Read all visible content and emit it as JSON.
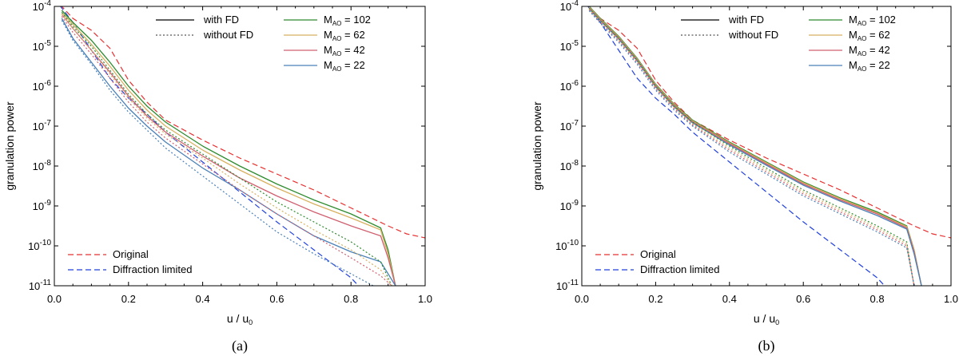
{
  "chart_data": [
    {
      "type": "line",
      "panel_label": "(a)",
      "xlabel": "u / u",
      "xlabel_sub": "0",
      "ylabel": "granulation power",
      "xlim": [
        0,
        1
      ],
      "ylim_log10": [
        -11,
        -4
      ],
      "xticks": [
        "0.0",
        "0.2",
        "0.4",
        "0.6",
        "0.8",
        "1.0"
      ],
      "yticks": [
        {
          "base": "10",
          "exp": "-4"
        },
        {
          "base": "10",
          "exp": "-5"
        },
        {
          "base": "10",
          "exp": "-6"
        },
        {
          "base": "10",
          "exp": "-7"
        },
        {
          "base": "10",
          "exp": "-8"
        },
        {
          "base": "10",
          "exp": "-9"
        },
        {
          "base": "10",
          "exp": "-10"
        },
        {
          "base": "10",
          "exp": "-11"
        }
      ],
      "legend_style": [
        {
          "label": "with FD",
          "dash": "solid",
          "color": "#000000"
        },
        {
          "label": "without FD",
          "dash": "dotted",
          "color": "#555555"
        }
      ],
      "legend_mao": [
        {
          "name": "M",
          "sub": "AO",
          "value": "= 102",
          "color": "#2e8b2e"
        },
        {
          "name": "M",
          "sub": "AO",
          "value": "= 62",
          "color": "#d8b060"
        },
        {
          "name": "M",
          "sub": "AO",
          "value": "= 42",
          "color": "#d06070"
        },
        {
          "name": "M",
          "sub": "AO",
          "value": "= 22",
          "color": "#4a80b8"
        }
      ],
      "legend_ref": [
        {
          "label": "Original",
          "color": "#e83030"
        },
        {
          "label": "Diffraction limited",
          "color": "#2040e0"
        }
      ],
      "series": [
        {
          "name": "Original",
          "style": "dashed",
          "color": "#e83030",
          "x": [
            0,
            0.05,
            0.1,
            0.15,
            0.2,
            0.25,
            0.3,
            0.4,
            0.5,
            0.6,
            0.7,
            0.8,
            0.9,
            0.95,
            1.0
          ],
          "log10y": [
            -3.8,
            -4.3,
            -4.6,
            -5.05,
            -5.85,
            -6.4,
            -6.85,
            -7.35,
            -7.8,
            -8.2,
            -8.6,
            -9.05,
            -9.5,
            -9.7,
            -9.8
          ]
        },
        {
          "name": "Diffraction limited",
          "style": "dashed",
          "color": "#2040e0",
          "x": [
            0,
            0.05,
            0.1,
            0.15,
            0.2,
            0.25,
            0.3,
            0.4,
            0.5,
            0.6,
            0.7,
            0.8,
            0.82
          ],
          "log10y": [
            -3.8,
            -4.4,
            -5.1,
            -5.8,
            -6.3,
            -6.7,
            -7.15,
            -7.9,
            -8.65,
            -9.4,
            -10.1,
            -10.8,
            -11.0
          ]
        },
        {
          "name": "M_AO = 102 with FD",
          "style": "solid",
          "color": "#2e8b2e",
          "x": [
            0.02,
            0.05,
            0.1,
            0.15,
            0.2,
            0.25,
            0.3,
            0.4,
            0.5,
            0.6,
            0.7,
            0.8,
            0.88,
            0.9,
            0.92
          ],
          "log10y": [
            -4.1,
            -4.4,
            -4.85,
            -5.4,
            -6.0,
            -6.5,
            -6.9,
            -7.5,
            -8.0,
            -8.45,
            -8.85,
            -9.2,
            -9.55,
            -10.1,
            -11.0
          ]
        },
        {
          "name": "M_AO = 62 with FD",
          "style": "solid",
          "color": "#d8b060",
          "x": [
            0.02,
            0.05,
            0.1,
            0.15,
            0.2,
            0.25,
            0.3,
            0.4,
            0.5,
            0.6,
            0.7,
            0.8,
            0.88,
            0.9,
            0.92
          ],
          "log10y": [
            -4.15,
            -4.45,
            -4.95,
            -5.5,
            -6.1,
            -6.6,
            -7.0,
            -7.6,
            -8.1,
            -8.55,
            -8.95,
            -9.3,
            -9.6,
            -10.2,
            -11.0
          ]
        },
        {
          "name": "M_AO = 42 with FD",
          "style": "solid",
          "color": "#d06070",
          "x": [
            0.02,
            0.05,
            0.1,
            0.15,
            0.2,
            0.25,
            0.3,
            0.4,
            0.5,
            0.6,
            0.7,
            0.8,
            0.88,
            0.9,
            0.92
          ],
          "log10y": [
            -4.2,
            -4.55,
            -5.1,
            -5.65,
            -6.25,
            -6.75,
            -7.15,
            -7.75,
            -8.3,
            -8.75,
            -9.15,
            -9.5,
            -9.75,
            -10.3,
            -11.0
          ]
        },
        {
          "name": "M_AO = 22 with FD",
          "style": "solid",
          "color": "#4a80b8",
          "x": [
            0.02,
            0.05,
            0.1,
            0.15,
            0.2,
            0.25,
            0.3,
            0.4,
            0.5,
            0.6,
            0.7,
            0.8,
            0.88,
            0.9,
            0.92
          ],
          "log10y": [
            -4.3,
            -4.8,
            -5.4,
            -6.0,
            -6.55,
            -7.0,
            -7.4,
            -8.05,
            -8.6,
            -9.2,
            -9.75,
            -10.15,
            -10.4,
            -10.7,
            -11.0
          ]
        },
        {
          "name": "M_AO = 102 without FD",
          "style": "dotted",
          "color": "#2e8b2e",
          "x": [
            0.02,
            0.05,
            0.1,
            0.15,
            0.2,
            0.25,
            0.3,
            0.4,
            0.5,
            0.6,
            0.7,
            0.8,
            0.88,
            0.91
          ],
          "log10y": [
            -4.15,
            -4.5,
            -5.0,
            -5.6,
            -6.2,
            -6.7,
            -7.1,
            -7.7,
            -8.3,
            -8.9,
            -9.4,
            -9.9,
            -10.4,
            -11.0
          ]
        },
        {
          "name": "M_AO = 62 without FD",
          "style": "dotted",
          "color": "#d8b060",
          "x": [
            0.02,
            0.05,
            0.1,
            0.15,
            0.2,
            0.25,
            0.3,
            0.4,
            0.5,
            0.6,
            0.7,
            0.8,
            0.88,
            0.91
          ],
          "log10y": [
            -4.2,
            -4.55,
            -5.1,
            -5.7,
            -6.3,
            -6.8,
            -7.2,
            -7.8,
            -8.45,
            -9.05,
            -9.6,
            -10.1,
            -10.6,
            -11.0
          ]
        },
        {
          "name": "M_AO = 42 without FD",
          "style": "dotted",
          "color": "#d06070",
          "x": [
            0.02,
            0.05,
            0.1,
            0.15,
            0.2,
            0.25,
            0.3,
            0.4,
            0.5,
            0.6,
            0.7,
            0.8,
            0.88,
            0.91
          ],
          "log10y": [
            -4.25,
            -4.65,
            -5.2,
            -5.8,
            -6.4,
            -6.9,
            -7.3,
            -7.95,
            -8.6,
            -9.2,
            -9.75,
            -10.3,
            -10.75,
            -11.0
          ]
        },
        {
          "name": "M_AO = 22 without FD",
          "style": "dotted",
          "color": "#4a80b8",
          "x": [
            0.02,
            0.05,
            0.1,
            0.15,
            0.2,
            0.25,
            0.3,
            0.4,
            0.5,
            0.6,
            0.7,
            0.8,
            0.86
          ],
          "log10y": [
            -4.35,
            -4.85,
            -5.45,
            -6.1,
            -6.65,
            -7.1,
            -7.55,
            -8.25,
            -8.95,
            -9.65,
            -10.2,
            -10.7,
            -11.0
          ]
        }
      ]
    },
    {
      "type": "line",
      "panel_label": "(b)",
      "xlabel": "u / u",
      "xlabel_sub": "0",
      "ylabel": "granulation power",
      "xlim": [
        0,
        1
      ],
      "ylim_log10": [
        -11,
        -4
      ],
      "xticks": [
        "0.0",
        "0.2",
        "0.4",
        "0.6",
        "0.8",
        "1.0"
      ],
      "yticks": [
        {
          "base": "10",
          "exp": "-4"
        },
        {
          "base": "10",
          "exp": "-5"
        },
        {
          "base": "10",
          "exp": "-6"
        },
        {
          "base": "10",
          "exp": "-7"
        },
        {
          "base": "10",
          "exp": "-8"
        },
        {
          "base": "10",
          "exp": "-9"
        },
        {
          "base": "10",
          "exp": "-10"
        },
        {
          "base": "10",
          "exp": "-11"
        }
      ],
      "legend_style": [
        {
          "label": "with FD",
          "dash": "solid",
          "color": "#000000"
        },
        {
          "label": "without FD",
          "dash": "dotted",
          "color": "#555555"
        }
      ],
      "legend_mao": [
        {
          "name": "M",
          "sub": "AO",
          "value": "= 102",
          "color": "#2e8b2e"
        },
        {
          "name": "M",
          "sub": "AO",
          "value": "= 62",
          "color": "#d8b060"
        },
        {
          "name": "M",
          "sub": "AO",
          "value": "= 42",
          "color": "#d06070"
        },
        {
          "name": "M",
          "sub": "AO",
          "value": "= 22",
          "color": "#4a80b8"
        }
      ],
      "legend_ref": [
        {
          "label": "Original",
          "color": "#e83030"
        },
        {
          "label": "Diffraction limited",
          "color": "#2040e0"
        }
      ],
      "series": [
        {
          "name": "Original",
          "style": "dashed",
          "color": "#e83030",
          "x": [
            0,
            0.05,
            0.1,
            0.15,
            0.2,
            0.25,
            0.3,
            0.4,
            0.5,
            0.6,
            0.7,
            0.8,
            0.9,
            0.95,
            1.0
          ],
          "log10y": [
            -3.8,
            -4.3,
            -4.6,
            -5.05,
            -5.85,
            -6.4,
            -6.85,
            -7.35,
            -7.8,
            -8.2,
            -8.6,
            -9.05,
            -9.5,
            -9.7,
            -9.8
          ]
        },
        {
          "name": "Diffraction limited",
          "style": "dashed",
          "color": "#2040e0",
          "x": [
            0,
            0.05,
            0.1,
            0.15,
            0.2,
            0.25,
            0.3,
            0.4,
            0.5,
            0.6,
            0.7,
            0.8,
            0.82
          ],
          "log10y": [
            -3.8,
            -4.4,
            -5.1,
            -5.8,
            -6.3,
            -6.7,
            -7.15,
            -7.9,
            -8.65,
            -9.4,
            -10.1,
            -10.8,
            -11.0
          ]
        },
        {
          "name": "M_AO = 102 with FD",
          "style": "solid",
          "color": "#2e8b2e",
          "x": [
            0.02,
            0.05,
            0.1,
            0.15,
            0.2,
            0.25,
            0.3,
            0.4,
            0.5,
            0.6,
            0.7,
            0.8,
            0.88,
            0.9,
            0.92
          ],
          "log10y": [
            -4.0,
            -4.3,
            -4.75,
            -5.3,
            -5.95,
            -6.45,
            -6.85,
            -7.4,
            -7.9,
            -8.4,
            -8.8,
            -9.15,
            -9.5,
            -10.1,
            -11.0
          ]
        },
        {
          "name": "M_AO = 62 with FD",
          "style": "solid",
          "color": "#d8b060",
          "x": [
            0.02,
            0.05,
            0.1,
            0.15,
            0.2,
            0.25,
            0.3,
            0.4,
            0.5,
            0.6,
            0.7,
            0.8,
            0.88,
            0.9,
            0.92
          ],
          "log10y": [
            -4.02,
            -4.32,
            -4.77,
            -5.32,
            -5.97,
            -6.47,
            -6.87,
            -7.42,
            -7.92,
            -8.42,
            -8.82,
            -9.18,
            -9.52,
            -10.1,
            -11.0
          ]
        },
        {
          "name": "M_AO = 42 with FD",
          "style": "solid",
          "color": "#d06070",
          "x": [
            0.02,
            0.05,
            0.1,
            0.15,
            0.2,
            0.25,
            0.3,
            0.4,
            0.5,
            0.6,
            0.7,
            0.8,
            0.88,
            0.9,
            0.92
          ],
          "log10y": [
            -4.04,
            -4.34,
            -4.79,
            -5.34,
            -5.99,
            -6.49,
            -6.89,
            -7.44,
            -7.95,
            -8.45,
            -8.85,
            -9.2,
            -9.55,
            -10.15,
            -11.0
          ]
        },
        {
          "name": "M_AO = 22 with FD",
          "style": "solid",
          "color": "#4a80b8",
          "x": [
            0.02,
            0.05,
            0.1,
            0.15,
            0.2,
            0.25,
            0.3,
            0.4,
            0.5,
            0.6,
            0.7,
            0.8,
            0.88,
            0.9,
            0.92
          ],
          "log10y": [
            -4.06,
            -4.36,
            -4.82,
            -5.37,
            -6.02,
            -6.52,
            -6.92,
            -7.47,
            -7.98,
            -8.48,
            -8.88,
            -9.24,
            -9.58,
            -10.2,
            -11.0
          ]
        },
        {
          "name": "M_AO = 102 without FD",
          "style": "dotted",
          "color": "#2e8b2e",
          "x": [
            0.02,
            0.05,
            0.1,
            0.15,
            0.2,
            0.25,
            0.3,
            0.4,
            0.5,
            0.6,
            0.7,
            0.8,
            0.88,
            0.9
          ],
          "log10y": [
            -4.05,
            -4.35,
            -4.8,
            -5.35,
            -6.0,
            -6.5,
            -6.9,
            -7.5,
            -8.05,
            -8.6,
            -9.05,
            -9.5,
            -9.9,
            -11.0
          ]
        },
        {
          "name": "M_AO = 62 without FD",
          "style": "dotted",
          "color": "#d8b060",
          "x": [
            0.02,
            0.05,
            0.1,
            0.15,
            0.2,
            0.25,
            0.3,
            0.4,
            0.5,
            0.6,
            0.7,
            0.8,
            0.88,
            0.9
          ],
          "log10y": [
            -4.07,
            -4.37,
            -4.83,
            -5.38,
            -6.03,
            -6.53,
            -6.94,
            -7.55,
            -8.1,
            -8.65,
            -9.1,
            -9.55,
            -9.95,
            -11.0
          ]
        },
        {
          "name": "M_AO = 42 without FD",
          "style": "dotted",
          "color": "#d06070",
          "x": [
            0.02,
            0.05,
            0.1,
            0.15,
            0.2,
            0.25,
            0.3,
            0.4,
            0.5,
            0.6,
            0.7,
            0.8,
            0.88,
            0.9
          ],
          "log10y": [
            -4.09,
            -4.4,
            -4.86,
            -5.41,
            -6.06,
            -6.56,
            -6.97,
            -7.6,
            -8.15,
            -8.7,
            -9.15,
            -9.6,
            -10.0,
            -11.0
          ]
        },
        {
          "name": "M_AO = 22 without FD",
          "style": "dotted",
          "color": "#4a80b8",
          "x": [
            0.02,
            0.05,
            0.1,
            0.15,
            0.2,
            0.25,
            0.3,
            0.4,
            0.5,
            0.6,
            0.7,
            0.8,
            0.88,
            0.9
          ],
          "log10y": [
            -4.11,
            -4.42,
            -4.9,
            -5.45,
            -6.1,
            -6.6,
            -7.0,
            -7.65,
            -8.2,
            -8.75,
            -9.2,
            -9.65,
            -10.05,
            -11.0
          ]
        }
      ]
    }
  ]
}
